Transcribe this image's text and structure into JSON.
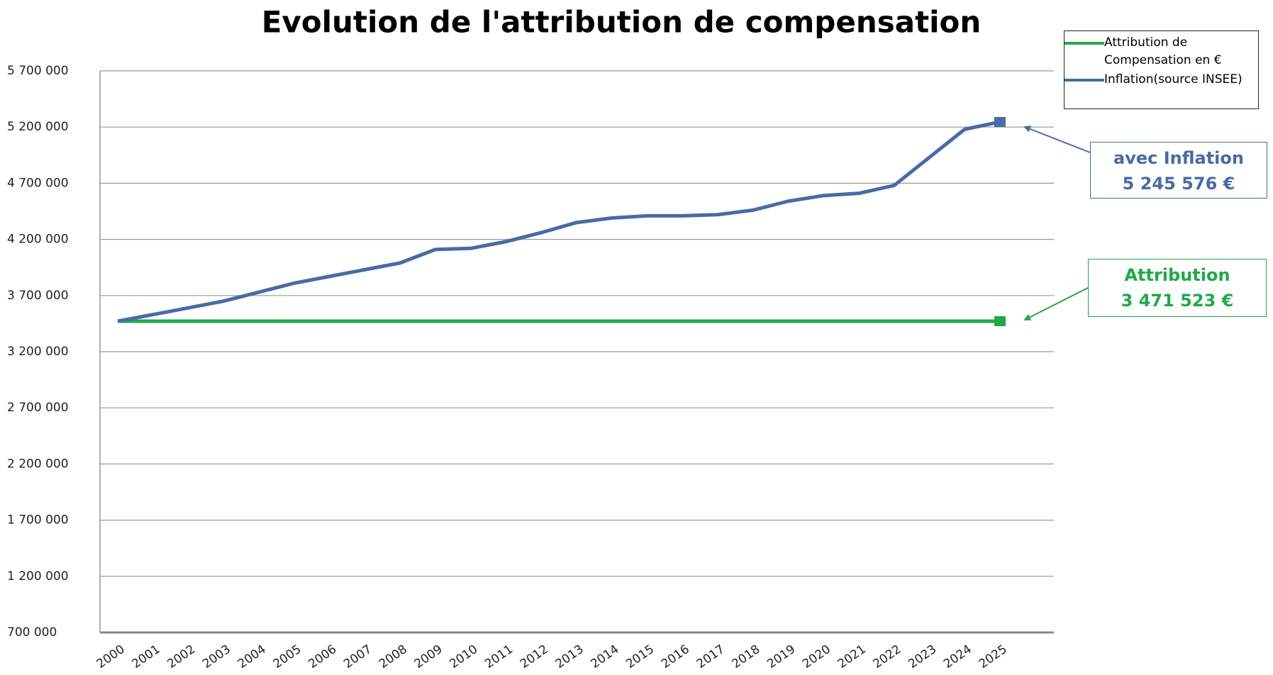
{
  "chart_data": {
    "type": "line",
    "title": "Evolution de l'attribution de compensation",
    "categories": [
      "2000",
      "2001",
      "2002",
      "2003",
      "2004",
      "2005",
      "2006",
      "2007",
      "2008",
      "2009",
      "2010",
      "2011",
      "2012",
      "2013",
      "2014",
      "2015",
      "2016",
      "2017",
      "2018",
      "2019",
      "2020",
      "2021",
      "2022",
      "2023",
      "2024",
      "2025"
    ],
    "series": [
      {
        "name": "Attribution de Compensation en €",
        "color": "#22a84a",
        "values": [
          3471523,
          3471523,
          3471523,
          3471523,
          3471523,
          3471523,
          3471523,
          3471523,
          3471523,
          3471523,
          3471523,
          3471523,
          3471523,
          3471523,
          3471523,
          3471523,
          3471523,
          3471523,
          3471523,
          3471523,
          3471523,
          3471523,
          3471523,
          3471523,
          3471523,
          3471523
        ]
      },
      {
        "name": "Inflation(source INSEE)",
        "color": "#4a6aa5",
        "values": [
          3471523,
          3530000,
          3590000,
          3650000,
          3730000,
          3810000,
          3870000,
          3930000,
          3990000,
          4110000,
          4120000,
          4180000,
          4260000,
          4350000,
          4390000,
          4410000,
          4410000,
          4420000,
          4460000,
          4540000,
          4590000,
          4610000,
          4680000,
          4930000,
          5180000,
          5245576
        ]
      }
    ],
    "ylim": [
      700000,
      5700000
    ],
    "yticks": [
      {
        "value": 700000,
        "label": "700 000"
      },
      {
        "value": 1200000,
        "label": "1 200 000"
      },
      {
        "value": 1700000,
        "label": "1 700 000"
      },
      {
        "value": 2200000,
        "label": "2 200 000"
      },
      {
        "value": 2700000,
        "label": "2 700 000"
      },
      {
        "value": 3200000,
        "label": "3 200 000"
      },
      {
        "value": 3700000,
        "label": "3 700 000"
      },
      {
        "value": 4200000,
        "label": "4 200 000"
      },
      {
        "value": 4700000,
        "label": "4 700 000"
      },
      {
        "value": 5200000,
        "label": "5 200 000"
      },
      {
        "value": 5700000,
        "label": "5 700 000"
      }
    ],
    "grid": true,
    "legend": "top-right",
    "annotations": [
      {
        "lines": [
          "avec Inflation",
          "5 245 576 €"
        ],
        "color": "#4a6aa5"
      },
      {
        "lines": [
          "Attribution",
          "3 471 523 €"
        ],
        "color": "#22a84a"
      }
    ]
  }
}
